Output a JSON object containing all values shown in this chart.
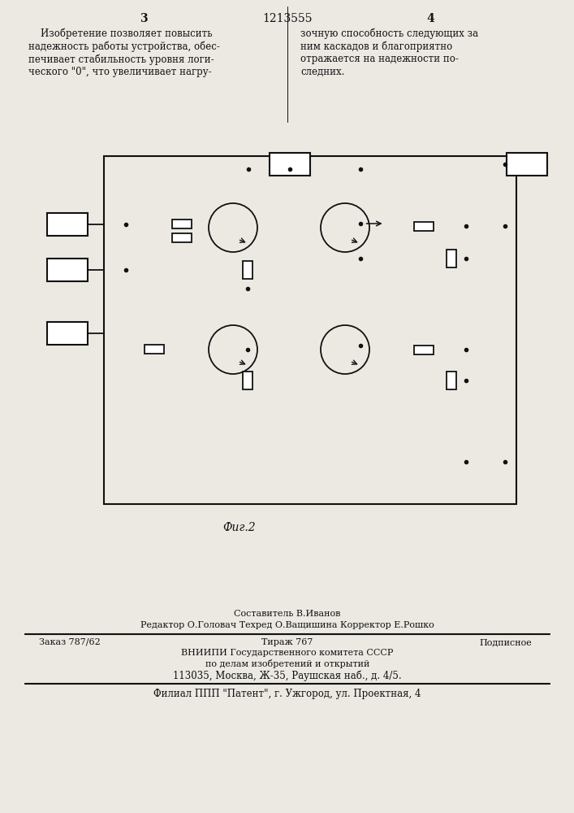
{
  "bg_color": "#ece9e3",
  "line_color": "#111111",
  "page_num_left": "3",
  "page_num_center": "1213555",
  "page_num_right": "4",
  "text_left_lines": [
    "    Изобретение позволяет повысить",
    "надежность работы устройства, обес-",
    "печивает стабильность уровня логи-",
    "ческого \"0\", что увеличивает нагру-"
  ],
  "text_right_lines": [
    "зочную способность следующих за",
    "ним каскадов и благоприятно",
    "отражается на надежности по-",
    "следних."
  ],
  "fig_caption": "Фиг.2",
  "footer_composer": "Составитель В.Иванов",
  "footer_editors": "Редактор О.Головач Техред О.Ващишина Корректор Е.Рошко",
  "footer_order": "Заказ 787/62",
  "footer_tirazh": "Тираж 767",
  "footer_podp": "Подписное",
  "footer_org1": "ВНИИПИ Государственного комитета СССР",
  "footer_org2": "по делам изобретений и открытий",
  "footer_addr": "113035, Москва, Ж-35, Раушская наб., д. 4/5.",
  "footer_filial": "Филиал ППП \"Патент\", г. Ужгород, ул. Проектная, 4"
}
